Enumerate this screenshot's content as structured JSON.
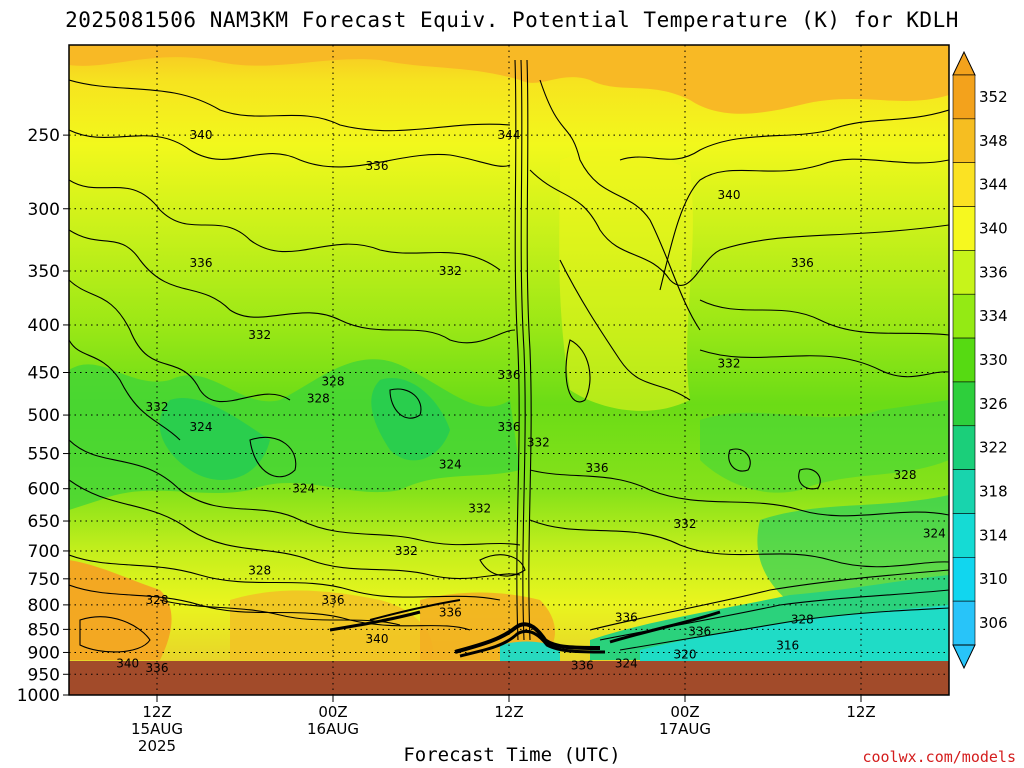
{
  "chart_data": {
    "type": "heatmap",
    "title": "2025081506 NAM3KM Forecast Equiv. Potential Temperature (K) for KDLH",
    "xlabel": "Forecast Time (UTC)",
    "ylabel": "",
    "y_scale": "log",
    "y_reversed": true,
    "ylim": [
      1000,
      200
    ],
    "y_ticks": [
      250,
      300,
      350,
      400,
      450,
      500,
      550,
      600,
      650,
      700,
      750,
      800,
      850,
      900,
      950,
      1000
    ],
    "xlim": [
      "2025-08-15 06Z",
      "2025-08-17 18Z"
    ],
    "x_ticks": [
      {
        "lines": [
          "12Z",
          "15AUG",
          "2025"
        ],
        "time": "2025-08-15 12Z"
      },
      {
        "lines": [
          "00Z",
          "16AUG"
        ],
        "time": "2025-08-16 00Z"
      },
      {
        "lines": [
          "12Z"
        ],
        "time": "2025-08-16 12Z"
      },
      {
        "lines": [
          "00Z",
          "17AUG"
        ],
        "time": "2025-08-17 00Z"
      },
      {
        "lines": [
          "12Z"
        ],
        "time": "2025-08-17 12Z"
      }
    ],
    "grid": true,
    "colorbar": {
      "labels": [
        352,
        348,
        344,
        340,
        336,
        334,
        330,
        326,
        322,
        318,
        314,
        310,
        306
      ],
      "colors": [
        "#f3a21c",
        "#f6be21",
        "#fbe223",
        "#f6f81f",
        "#c7f41a",
        "#94ea14",
        "#56da12",
        "#2ecf3c",
        "#1bcf7a",
        "#18d4ad",
        "#15dbd4",
        "#11d6ef",
        "#28c4f9"
      ],
      "position": "right"
    },
    "contour_labels": [
      {
        "time": "2025-08-15 15Z",
        "p": 250,
        "value": 340
      },
      {
        "time": "2025-08-16 12Z",
        "p": 250,
        "value": 344
      },
      {
        "time": "2025-08-16 03Z",
        "p": 270,
        "value": 336
      },
      {
        "time": "2025-08-17 03Z",
        "p": 290,
        "value": 340
      },
      {
        "time": "2025-08-15 15Z",
        "p": 343,
        "value": 336
      },
      {
        "time": "2025-08-16 08Z",
        "p": 350,
        "value": 332
      },
      {
        "time": "2025-08-17 08Z",
        "p": 343,
        "value": 336
      },
      {
        "time": "2025-08-15 19Z",
        "p": 410,
        "value": 332
      },
      {
        "time": "2025-08-16 12Z",
        "p": 453,
        "value": 336
      },
      {
        "time": "2025-08-17 03Z",
        "p": 440,
        "value": 332
      },
      {
        "time": "2025-08-16 00Z",
        "p": 460,
        "value": 328
      },
      {
        "time": "2025-08-15 23Z",
        "p": 480,
        "value": 328
      },
      {
        "time": "2025-08-15 12Z",
        "p": 490,
        "value": 332
      },
      {
        "time": "2025-08-15 15Z",
        "p": 515,
        "value": 324
      },
      {
        "time": "2025-08-16 12Z",
        "p": 515,
        "value": 336
      },
      {
        "time": "2025-08-16 14Z",
        "p": 535,
        "value": 332
      },
      {
        "time": "2025-08-16 08Z",
        "p": 565,
        "value": 324
      },
      {
        "time": "2025-08-16 18Z",
        "p": 570,
        "value": 336
      },
      {
        "time": "2025-08-15 22Z",
        "p": 600,
        "value": 324
      },
      {
        "time": "2025-08-17 15Z",
        "p": 580,
        "value": 328
      },
      {
        "time": "2025-08-16 10Z",
        "p": 630,
        "value": 332
      },
      {
        "time": "2025-08-17 00Z",
        "p": 655,
        "value": 332
      },
      {
        "time": "2025-08-17 17Z",
        "p": 670,
        "value": 324
      },
      {
        "time": "2025-08-16 05Z",
        "p": 700,
        "value": 332
      },
      {
        "time": "2025-08-15 19Z",
        "p": 735,
        "value": 328
      },
      {
        "time": "2025-08-15 12Z",
        "p": 790,
        "value": 328
      },
      {
        "time": "2025-08-16 00Z",
        "p": 790,
        "value": 336
      },
      {
        "time": "2025-08-16 08Z",
        "p": 815,
        "value": 336
      },
      {
        "time": "2025-08-16 20Z",
        "p": 825,
        "value": 336
      },
      {
        "time": "2025-08-17 08Z",
        "p": 830,
        "value": 328
      },
      {
        "time": "2025-08-17 01Z",
        "p": 855,
        "value": 336
      },
      {
        "time": "2025-08-16 03Z",
        "p": 870,
        "value": 340
      },
      {
        "time": "2025-08-17 07Z",
        "p": 885,
        "value": 316
      },
      {
        "time": "2025-08-17 00Z",
        "p": 905,
        "value": 320
      },
      {
        "time": "2025-08-16 20Z",
        "p": 925,
        "value": 324
      },
      {
        "time": "2025-08-16 17Z",
        "p": 930,
        "value": 336
      },
      {
        "time": "2025-08-15 10Z",
        "p": 925,
        "value": 340
      },
      {
        "time": "2025-08-15 12Z",
        "p": 935,
        "value": 336
      }
    ]
  },
  "credit": "coolwx.com/models"
}
